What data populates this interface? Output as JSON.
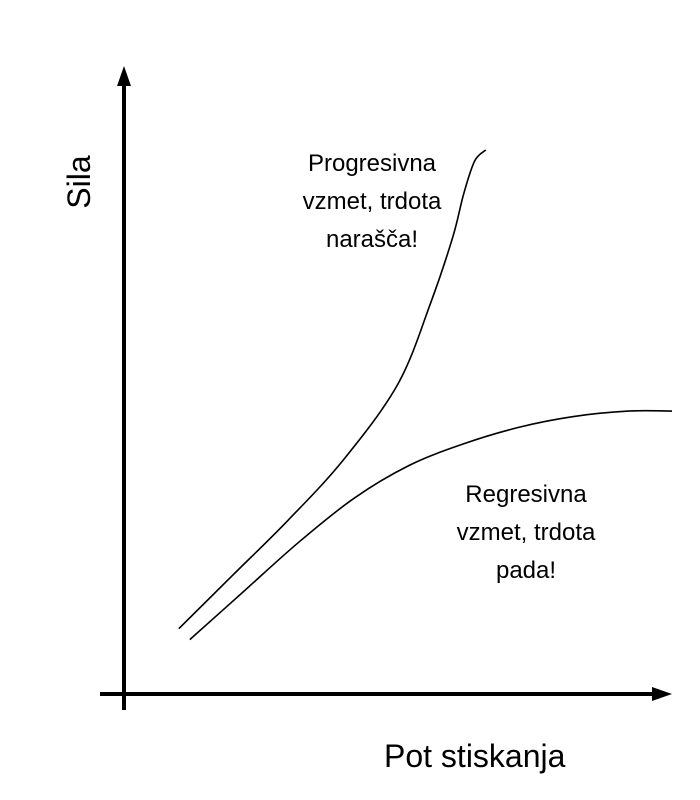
{
  "chart_data": {
    "type": "line",
    "title": "",
    "xlabel": "Pot stiskanja",
    "ylabel": "Sila",
    "xlim": [
      0,
      100
    ],
    "ylim": [
      0,
      100
    ],
    "grid": false,
    "show_ticks": false,
    "series": [
      {
        "curve": "progressive",
        "color": "#000000",
        "x": [
          10,
          20,
          30,
          40,
          50,
          56,
          60,
          62,
          64,
          66
        ],
        "y": [
          12,
          22,
          32,
          43,
          57,
          72,
          84,
          92,
          98,
          100
        ]
      },
      {
        "curve": "regressive",
        "color": "#000000",
        "x": [
          12,
          22,
          32,
          42,
          52,
          62,
          72,
          82,
          92,
          100
        ],
        "y": [
          10,
          19,
          28,
          36,
          42,
          46,
          49,
          51,
          52,
          52
        ]
      }
    ],
    "annotations": [
      {
        "series": "progressive",
        "lines": [
          "Progresivna",
          "vzmet, trdota",
          "narašča!"
        ]
      },
      {
        "series": "regressive",
        "lines": [
          "Regresivna",
          "vzmet, trdota",
          "pada!"
        ]
      }
    ]
  }
}
